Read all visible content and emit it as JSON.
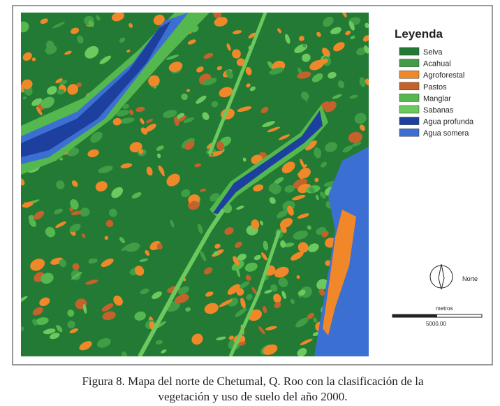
{
  "legend": {
    "title": "Leyenda",
    "items": [
      {
        "label": "Selva",
        "color": "#237a34"
      },
      {
        "label": "Acahual",
        "color": "#3f9e45"
      },
      {
        "label": "Agroforestal",
        "color": "#f0882a"
      },
      {
        "label": "Pastos",
        "color": "#c4622c"
      },
      {
        "label": "Manglar",
        "color": "#55b84e"
      },
      {
        "label": "Sabanas",
        "color": "#6cc95e"
      },
      {
        "label": "Agua profunda",
        "color": "#1d3f9e"
      },
      {
        "label": "Agua somera",
        "color": "#3c6fd2"
      }
    ]
  },
  "north": {
    "label": "Norte"
  },
  "scale": {
    "unit": "metros",
    "distance": "5000.00"
  },
  "caption": {
    "lines": [
      "Figura 8. Mapa del norte de Chetumal, Q. Roo con la clasificación de la",
      "vegetación y uso de suelo del año 2000."
    ]
  }
}
